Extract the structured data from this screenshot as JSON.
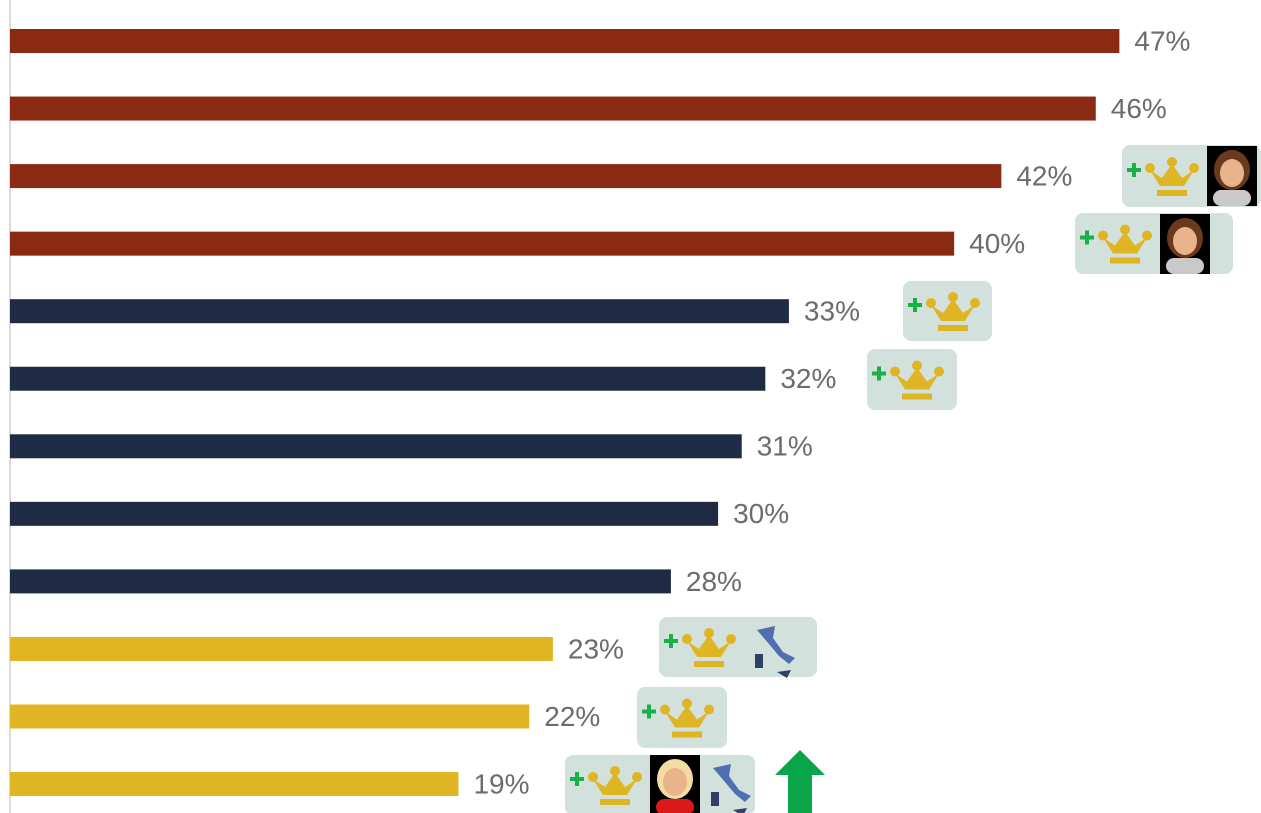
{
  "chart_data": {
    "type": "bar",
    "orientation": "horizontal",
    "values": [
      47,
      46,
      42,
      40,
      33,
      32,
      31,
      30,
      28,
      23,
      22,
      19
    ],
    "value_labels": [
      "47%",
      "46%",
      "42%",
      "40%",
      "33%",
      "32%",
      "31%",
      "30%",
      "28%",
      "23%",
      "22%",
      "19%"
    ],
    "colors": [
      "#8b2a12",
      "#8b2a12",
      "#8b2a12",
      "#8b2a12",
      "#1f2b45",
      "#1f2b45",
      "#1f2b45",
      "#1f2b45",
      "#1f2b45",
      "#e0b524",
      "#e0b524",
      "#e0b524"
    ],
    "xlim": [
      0,
      53
    ]
  }
}
